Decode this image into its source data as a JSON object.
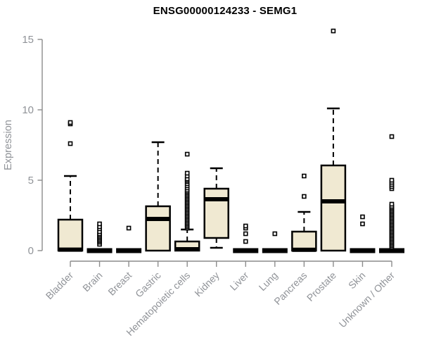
{
  "chart_data": {
    "type": "boxplot",
    "title": "ENSG00000124233 - SEMG1",
    "ylabel": "Expression",
    "xlabel": "",
    "ylim": [
      0,
      15.7
    ],
    "yticks": [
      0,
      5,
      10,
      15
    ],
    "grid": false,
    "legend": "none",
    "colors": {
      "box_fill": "#F0E9D2",
      "box_stroke": "#000000",
      "axis": "#8C8C8C",
      "tick_label": "#909398",
      "title": "#000000",
      "background": "#FFFFFF"
    },
    "categories": [
      "Bladder",
      "Brain",
      "Breast",
      "Gastric",
      "Hematopoietic cells",
      "Kidney",
      "Liver",
      "Lung",
      "Pancreas",
      "Prostate",
      "Skin",
      "Unknown / Other"
    ],
    "boxes": [
      {
        "category": "Bladder",
        "q1": 0,
        "median": 0.07,
        "q3": 2.2,
        "whisker_low": 0,
        "whisker_high": 5.3,
        "outliers": [
          7.6,
          9.0,
          9.1
        ]
      },
      {
        "category": "Brain",
        "q1": 0,
        "median": 0,
        "q3": 0,
        "whisker_low": 0,
        "whisker_high": 0,
        "outliers": [
          0.45,
          0.6,
          0.7,
          0.8,
          0.9,
          1.0,
          1.1,
          1.2,
          1.35,
          1.55,
          1.7,
          1.9
        ]
      },
      {
        "category": "Breast",
        "q1": 0,
        "median": 0,
        "q3": 0,
        "whisker_low": 0,
        "whisker_high": 0,
        "outliers": [
          1.6
        ]
      },
      {
        "category": "Gastric",
        "q1": 0,
        "median": 2.25,
        "q3": 3.15,
        "whisker_low": 0,
        "whisker_high": 7.7,
        "outliers": []
      },
      {
        "category": "Hematopoietic cells",
        "q1": 0,
        "median": 0.1,
        "q3": 0.65,
        "whisker_low": 0,
        "whisker_high": 1.5,
        "outliers": [
          1.6,
          1.7,
          1.8,
          1.9,
          2.0,
          2.1,
          2.2,
          2.3,
          2.4,
          2.5,
          2.6,
          2.7,
          2.8,
          2.9,
          3.0,
          3.1,
          3.2,
          3.3,
          3.4,
          3.5,
          3.6,
          3.7,
          3.8,
          3.9,
          4.0,
          4.1,
          4.2,
          4.3,
          4.45,
          4.6,
          4.75,
          4.9,
          5.0,
          5.1,
          5.3,
          5.5,
          6.85
        ]
      },
      {
        "category": "Kidney",
        "q1": 0.9,
        "median": 3.65,
        "q3": 4.4,
        "whisker_low": 0.2,
        "whisker_high": 5.85,
        "outliers": []
      },
      {
        "category": "Liver",
        "q1": 0,
        "median": 0,
        "q3": 0,
        "whisker_low": 0,
        "whisker_high": 0,
        "outliers": [
          0.65,
          1.2,
          1.6,
          1.75
        ]
      },
      {
        "category": "Lung",
        "q1": 0,
        "median": 0,
        "q3": 0,
        "whisker_low": 0,
        "whisker_high": 0,
        "outliers": [
          1.2
        ]
      },
      {
        "category": "Pancreas",
        "q1": 0,
        "median": 0.06,
        "q3": 1.35,
        "whisker_low": 0,
        "whisker_high": 2.75,
        "outliers": [
          3.85,
          5.3
        ]
      },
      {
        "category": "Prostate",
        "q1": 0,
        "median": 3.5,
        "q3": 6.05,
        "whisker_low": 0,
        "whisker_high": 10.1,
        "outliers": [
          15.6
        ]
      },
      {
        "category": "Skin",
        "q1": 0,
        "median": 0,
        "q3": 0,
        "whisker_low": 0,
        "whisker_high": 0,
        "outliers": [
          1.9,
          2.4
        ]
      },
      {
        "category": "Unknown / Other",
        "q1": 0,
        "median": 0,
        "q3": 0,
        "whisker_low": 0,
        "whisker_high": 0,
        "outliers": [
          0.25,
          0.35,
          0.45,
          0.55,
          0.65,
          0.75,
          0.85,
          0.95,
          1.05,
          1.15,
          1.25,
          1.35,
          1.45,
          1.55,
          1.65,
          1.75,
          1.85,
          1.95,
          2.05,
          2.15,
          2.25,
          2.35,
          2.45,
          2.55,
          2.65,
          2.75,
          2.85,
          2.95,
          3.05,
          3.15,
          3.3,
          4.4,
          4.55,
          4.7,
          4.85,
          5.0,
          8.1
        ]
      }
    ]
  }
}
